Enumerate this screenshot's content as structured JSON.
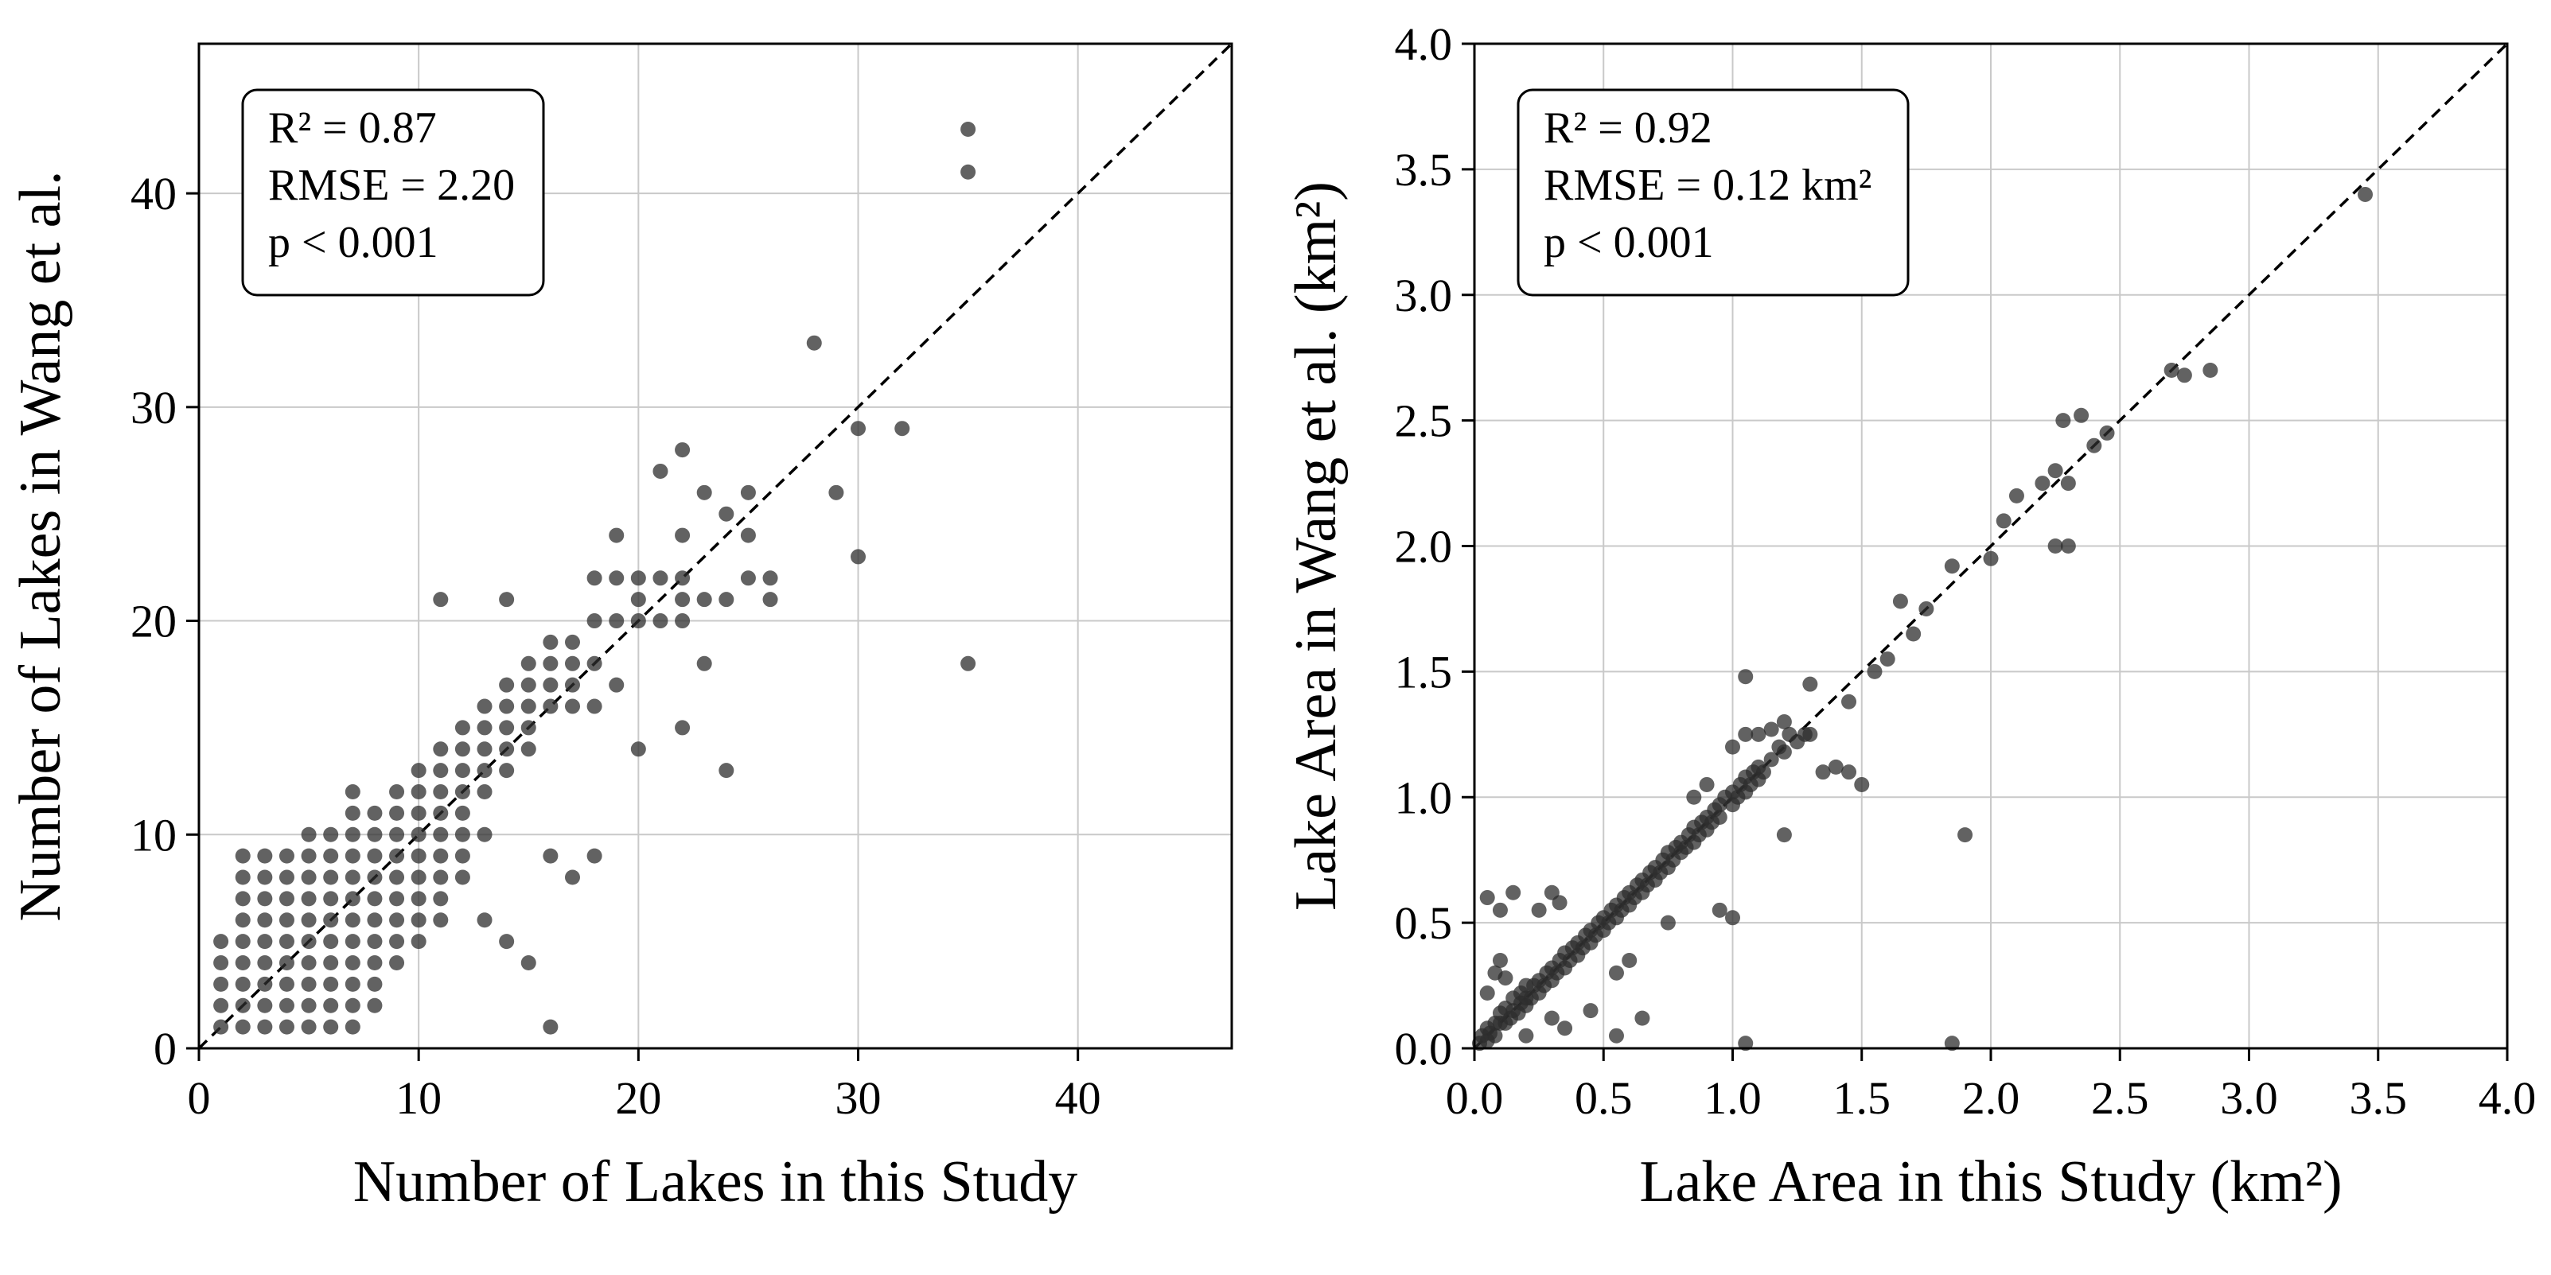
{
  "figure": {
    "description": "Two-panel scatter comparison of this study vs Wang et al.",
    "background": "#ffffff",
    "point_color": "#2e2e2e",
    "grid_color": "#c9c9c9",
    "identity_line_color": "#000000"
  },
  "chart_data": [
    {
      "type": "scatter",
      "id": "lake-count-comparison",
      "title": "",
      "xlabel": "Number of Lakes in this Study",
      "ylabel": "Number of Lakes in Wang et al.",
      "xlim": [
        0,
        47
      ],
      "ylim": [
        0,
        47
      ],
      "xticks": [
        0,
        10,
        20,
        30,
        40
      ],
      "yticks": [
        0,
        10,
        20,
        30,
        40
      ],
      "xtick_labels": [
        "0",
        "10",
        "20",
        "30",
        "40"
      ],
      "ytick_labels": [
        "0",
        "10",
        "20",
        "30",
        "40"
      ],
      "grid": true,
      "identity_line": true,
      "legend_position": "none",
      "stats": [
        "R² = 0.87",
        "RMSE = 2.20",
        "p < 0.001"
      ],
      "points": [
        [
          1,
          1
        ],
        [
          2,
          1
        ],
        [
          3,
          1
        ],
        [
          4,
          1
        ],
        [
          5,
          1
        ],
        [
          6,
          1
        ],
        [
          7,
          1
        ],
        [
          16,
          1
        ],
        [
          1,
          2
        ],
        [
          2,
          2
        ],
        [
          3,
          2
        ],
        [
          4,
          2
        ],
        [
          5,
          2
        ],
        [
          6,
          2
        ],
        [
          7,
          2
        ],
        [
          8,
          2
        ],
        [
          1,
          3
        ],
        [
          2,
          3
        ],
        [
          3,
          3
        ],
        [
          4,
          3
        ],
        [
          5,
          3
        ],
        [
          6,
          3
        ],
        [
          7,
          3
        ],
        [
          8,
          3
        ],
        [
          1,
          4
        ],
        [
          2,
          4
        ],
        [
          3,
          4
        ],
        [
          4,
          4
        ],
        [
          5,
          4
        ],
        [
          6,
          4
        ],
        [
          7,
          4
        ],
        [
          8,
          4
        ],
        [
          9,
          4
        ],
        [
          15,
          4
        ],
        [
          1,
          5
        ],
        [
          2,
          5
        ],
        [
          3,
          5
        ],
        [
          4,
          5
        ],
        [
          5,
          5
        ],
        [
          6,
          5
        ],
        [
          7,
          5
        ],
        [
          8,
          5
        ],
        [
          9,
          5
        ],
        [
          10,
          5
        ],
        [
          14,
          5
        ],
        [
          2,
          6
        ],
        [
          3,
          6
        ],
        [
          4,
          6
        ],
        [
          5,
          6
        ],
        [
          6,
          6
        ],
        [
          7,
          6
        ],
        [
          8,
          6
        ],
        [
          9,
          6
        ],
        [
          10,
          6
        ],
        [
          11,
          6
        ],
        [
          13,
          6
        ],
        [
          2,
          7
        ],
        [
          3,
          7
        ],
        [
          4,
          7
        ],
        [
          5,
          7
        ],
        [
          6,
          7
        ],
        [
          7,
          7
        ],
        [
          8,
          7
        ],
        [
          9,
          7
        ],
        [
          10,
          7
        ],
        [
          11,
          7
        ],
        [
          2,
          8
        ],
        [
          3,
          8
        ],
        [
          4,
          8
        ],
        [
          5,
          8
        ],
        [
          6,
          8
        ],
        [
          7,
          8
        ],
        [
          8,
          8
        ],
        [
          9,
          8
        ],
        [
          10,
          8
        ],
        [
          11,
          8
        ],
        [
          12,
          8
        ],
        [
          17,
          8
        ],
        [
          2,
          9
        ],
        [
          3,
          9
        ],
        [
          4,
          9
        ],
        [
          5,
          9
        ],
        [
          6,
          9
        ],
        [
          7,
          9
        ],
        [
          8,
          9
        ],
        [
          9,
          9
        ],
        [
          10,
          9
        ],
        [
          11,
          9
        ],
        [
          12,
          9
        ],
        [
          16,
          9
        ],
        [
          18,
          9
        ],
        [
          5,
          10
        ],
        [
          6,
          10
        ],
        [
          7,
          10
        ],
        [
          8,
          10
        ],
        [
          9,
          10
        ],
        [
          10,
          10
        ],
        [
          11,
          10
        ],
        [
          12,
          10
        ],
        [
          13,
          10
        ],
        [
          7,
          11
        ],
        [
          8,
          11
        ],
        [
          9,
          11
        ],
        [
          10,
          11
        ],
        [
          11,
          11
        ],
        [
          12,
          11
        ],
        [
          7,
          12
        ],
        [
          9,
          12
        ],
        [
          10,
          12
        ],
        [
          11,
          12
        ],
        [
          12,
          12
        ],
        [
          13,
          12
        ],
        [
          10,
          13
        ],
        [
          11,
          13
        ],
        [
          12,
          13
        ],
        [
          13,
          13
        ],
        [
          14,
          13
        ],
        [
          24,
          13
        ],
        [
          11,
          14
        ],
        [
          12,
          14
        ],
        [
          13,
          14
        ],
        [
          14,
          14
        ],
        [
          15,
          14
        ],
        [
          20,
          14
        ],
        [
          12,
          15
        ],
        [
          13,
          15
        ],
        [
          14,
          15
        ],
        [
          15,
          15
        ],
        [
          22,
          15
        ],
        [
          13,
          16
        ],
        [
          14,
          16
        ],
        [
          15,
          16
        ],
        [
          16,
          16
        ],
        [
          17,
          16
        ],
        [
          18,
          16
        ],
        [
          14,
          17
        ],
        [
          15,
          17
        ],
        [
          16,
          17
        ],
        [
          17,
          17
        ],
        [
          19,
          17
        ],
        [
          15,
          18
        ],
        [
          16,
          18
        ],
        [
          17,
          18
        ],
        [
          18,
          18
        ],
        [
          23,
          18
        ],
        [
          35,
          18
        ],
        [
          16,
          19
        ],
        [
          17,
          19
        ],
        [
          18,
          20
        ],
        [
          19,
          20
        ],
        [
          20,
          20
        ],
        [
          21,
          20
        ],
        [
          22,
          20
        ],
        [
          11,
          21
        ],
        [
          14,
          21
        ],
        [
          20,
          21
        ],
        [
          22,
          21
        ],
        [
          23,
          21
        ],
        [
          24,
          21
        ],
        [
          26,
          21
        ],
        [
          18,
          22
        ],
        [
          19,
          22
        ],
        [
          20,
          22
        ],
        [
          21,
          22
        ],
        [
          22,
          22
        ],
        [
          25,
          22
        ],
        [
          26,
          22
        ],
        [
          30,
          23
        ],
        [
          19,
          24
        ],
        [
          22,
          24
        ],
        [
          25,
          24
        ],
        [
          24,
          25
        ],
        [
          23,
          26
        ],
        [
          25,
          26
        ],
        [
          29,
          26
        ],
        [
          21,
          27
        ],
        [
          22,
          28
        ],
        [
          30,
          29
        ],
        [
          32,
          29
        ],
        [
          28,
          33
        ],
        [
          35,
          41
        ],
        [
          35,
          43
        ]
      ]
    },
    {
      "type": "scatter",
      "id": "lake-area-comparison",
      "title": "",
      "xlabel": "Lake Area in this Study (km²)",
      "ylabel": "Lake Area in Wang et al. (km²)",
      "xlim": [
        0,
        4
      ],
      "ylim": [
        0,
        4
      ],
      "xticks": [
        0,
        0.5,
        1,
        1.5,
        2,
        2.5,
        3,
        3.5,
        4
      ],
      "yticks": [
        0,
        0.5,
        1,
        1.5,
        2,
        2.5,
        3,
        3.5,
        4
      ],
      "xtick_labels": [
        "0.0",
        "0.5",
        "1.0",
        "1.5",
        "2.0",
        "2.5",
        "3.0",
        "3.5",
        "4.0"
      ],
      "ytick_labels": [
        "0.0",
        "0.5",
        "1.0",
        "1.5",
        "2.0",
        "2.5",
        "3.0",
        "3.5",
        "4.0"
      ],
      "grid": true,
      "identity_line": true,
      "legend_position": "none",
      "stats": [
        "R² = 0.92",
        "RMSE = 0.12 km²",
        "p < 0.001"
      ],
      "points": [
        [
          0.02,
          0.02
        ],
        [
          0.03,
          0.05
        ],
        [
          0.05,
          0.03
        ],
        [
          0.05,
          0.08
        ],
        [
          0.06,
          0.06
        ],
        [
          0.08,
          0.1
        ],
        [
          0.08,
          0.05
        ],
        [
          0.1,
          0.1
        ],
        [
          0.1,
          0.14
        ],
        [
          0.12,
          0.1
        ],
        [
          0.12,
          0.16
        ],
        [
          0.14,
          0.12
        ],
        [
          0.15,
          0.15
        ],
        [
          0.15,
          0.2
        ],
        [
          0.17,
          0.14
        ],
        [
          0.18,
          0.18
        ],
        [
          0.18,
          0.22
        ],
        [
          0.2,
          0.17
        ],
        [
          0.2,
          0.2
        ],
        [
          0.2,
          0.25
        ],
        [
          0.22,
          0.2
        ],
        [
          0.23,
          0.25
        ],
        [
          0.25,
          0.22
        ],
        [
          0.25,
          0.27
        ],
        [
          0.27,
          0.25
        ],
        [
          0.28,
          0.3
        ],
        [
          0.3,
          0.27
        ],
        [
          0.3,
          0.32
        ],
        [
          0.32,
          0.3
        ],
        [
          0.33,
          0.35
        ],
        [
          0.35,
          0.32
        ],
        [
          0.35,
          0.38
        ],
        [
          0.37,
          0.35
        ],
        [
          0.38,
          0.4
        ],
        [
          0.4,
          0.37
        ],
        [
          0.4,
          0.42
        ],
        [
          0.42,
          0.4
        ],
        [
          0.43,
          0.45
        ],
        [
          0.45,
          0.42
        ],
        [
          0.45,
          0.47
        ],
        [
          0.47,
          0.45
        ],
        [
          0.48,
          0.5
        ],
        [
          0.5,
          0.47
        ],
        [
          0.5,
          0.52
        ],
        [
          0.52,
          0.5
        ],
        [
          0.53,
          0.55
        ],
        [
          0.55,
          0.52
        ],
        [
          0.55,
          0.57
        ],
        [
          0.57,
          0.55
        ],
        [
          0.58,
          0.6
        ],
        [
          0.6,
          0.57
        ],
        [
          0.6,
          0.62
        ],
        [
          0.62,
          0.6
        ],
        [
          0.63,
          0.65
        ],
        [
          0.65,
          0.62
        ],
        [
          0.65,
          0.67
        ],
        [
          0.67,
          0.65
        ],
        [
          0.68,
          0.7
        ],
        [
          0.7,
          0.67
        ],
        [
          0.7,
          0.72
        ],
        [
          0.72,
          0.7
        ],
        [
          0.73,
          0.75
        ],
        [
          0.75,
          0.72
        ],
        [
          0.75,
          0.78
        ],
        [
          0.77,
          0.75
        ],
        [
          0.78,
          0.8
        ],
        [
          0.8,
          0.78
        ],
        [
          0.8,
          0.82
        ],
        [
          0.82,
          0.8
        ],
        [
          0.83,
          0.85
        ],
        [
          0.85,
          0.82
        ],
        [
          0.85,
          0.88
        ],
        [
          0.87,
          0.85
        ],
        [
          0.88,
          0.9
        ],
        [
          0.9,
          0.87
        ],
        [
          0.9,
          0.92
        ],
        [
          0.92,
          0.9
        ],
        [
          0.93,
          0.95
        ],
        [
          0.95,
          0.92
        ],
        [
          0.95,
          0.97
        ],
        [
          0.97,
          1.0
        ],
        [
          1.0,
          0.97
        ],
        [
          1.0,
          1.02
        ],
        [
          1.02,
          1.0
        ],
        [
          1.03,
          1.05
        ],
        [
          1.05,
          1.02
        ],
        [
          1.05,
          1.08
        ],
        [
          1.07,
          1.05
        ],
        [
          1.08,
          1.1
        ],
        [
          1.1,
          1.07
        ],
        [
          1.1,
          1.12
        ],
        [
          1.12,
          1.1
        ],
        [
          1.15,
          1.15
        ],
        [
          1.18,
          1.2
        ],
        [
          1.2,
          1.18
        ],
        [
          1.22,
          1.25
        ],
        [
          1.25,
          1.22
        ],
        [
          1.28,
          1.25
        ],
        [
          1.3,
          1.25
        ],
        [
          0.05,
          0.22
        ],
        [
          0.08,
          0.3
        ],
        [
          0.1,
          0.35
        ],
        [
          0.12,
          0.28
        ],
        [
          0.05,
          0.6
        ],
        [
          0.1,
          0.55
        ],
        [
          0.15,
          0.62
        ],
        [
          0.3,
          0.62
        ],
        [
          0.33,
          0.58
        ],
        [
          0.25,
          0.55
        ],
        [
          0.2,
          0.05
        ],
        [
          0.3,
          0.12
        ],
        [
          0.35,
          0.08
        ],
        [
          0.45,
          0.15
        ],
        [
          0.55,
          0.05
        ],
        [
          0.65,
          0.12
        ],
        [
          0.55,
          0.3
        ],
        [
          0.6,
          0.35
        ],
        [
          0.75,
          0.5
        ],
        [
          0.95,
          0.55
        ],
        [
          1.0,
          0.52
        ],
        [
          1.05,
          0.02
        ],
        [
          1.85,
          0.02
        ],
        [
          1.2,
          0.85
        ],
        [
          1.9,
          0.85
        ],
        [
          0.85,
          1.0
        ],
        [
          0.9,
          1.05
        ],
        [
          1.0,
          1.2
        ],
        [
          1.05,
          1.25
        ],
        [
          1.1,
          1.25
        ],
        [
          1.05,
          1.48
        ],
        [
          1.15,
          1.27
        ],
        [
          1.2,
          1.3
        ],
        [
          1.35,
          1.1
        ],
        [
          1.4,
          1.12
        ],
        [
          1.45,
          1.1
        ],
        [
          1.5,
          1.05
        ],
        [
          1.3,
          1.45
        ],
        [
          1.45,
          1.38
        ],
        [
          1.55,
          1.5
        ],
        [
          1.6,
          1.55
        ],
        [
          1.65,
          1.78
        ],
        [
          1.7,
          1.65
        ],
        [
          1.75,
          1.75
        ],
        [
          1.85,
          1.92
        ],
        [
          2.0,
          1.95
        ],
        [
          2.05,
          2.1
        ],
        [
          2.1,
          2.2
        ],
        [
          2.2,
          2.25
        ],
        [
          2.25,
          2.0
        ],
        [
          2.3,
          2.0
        ],
        [
          2.25,
          2.3
        ],
        [
          2.3,
          2.25
        ],
        [
          2.28,
          2.5
        ],
        [
          2.35,
          2.52
        ],
        [
          2.4,
          2.4
        ],
        [
          2.45,
          2.45
        ],
        [
          2.7,
          2.7
        ],
        [
          2.75,
          2.68
        ],
        [
          2.85,
          2.7
        ],
        [
          3.45,
          3.4
        ]
      ]
    }
  ]
}
